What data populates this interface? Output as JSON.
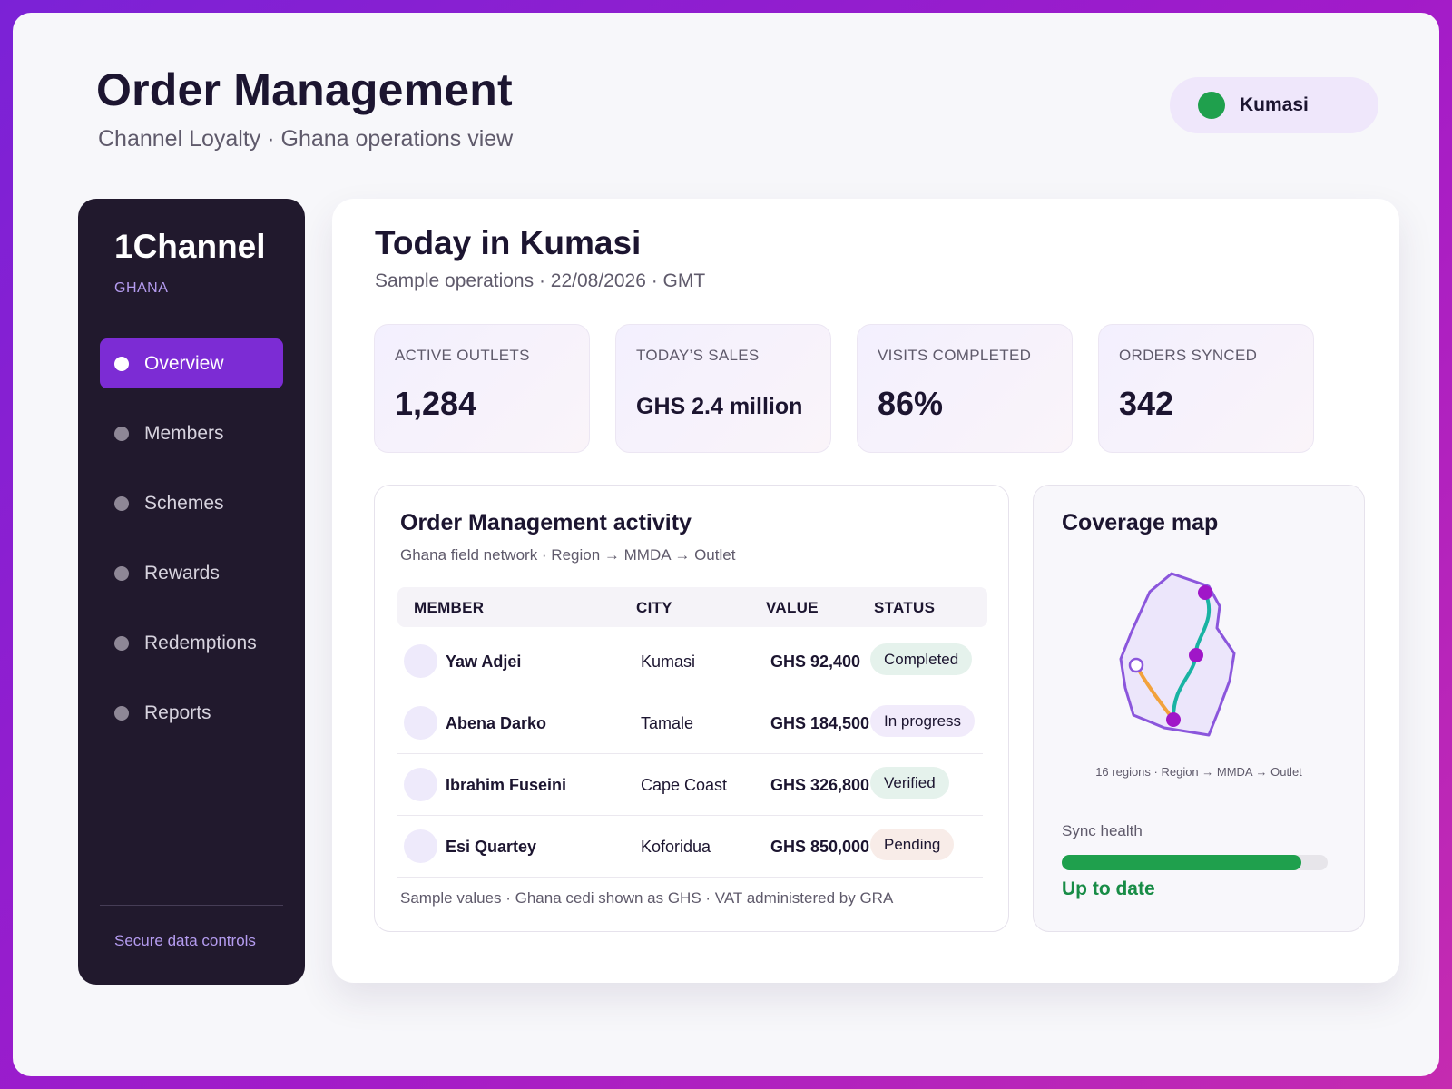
{
  "header": {
    "title": "Order Management",
    "subtitle": "Channel Loyalty · Ghana operations view",
    "location": "Kumasi",
    "location_color": "#1fa04d"
  },
  "sidebar": {
    "brand": "1Channel",
    "country": "GHANA",
    "items": [
      {
        "label": "Overview",
        "active": true
      },
      {
        "label": "Members",
        "active": false
      },
      {
        "label": "Schemes",
        "active": false
      },
      {
        "label": "Rewards",
        "active": false
      },
      {
        "label": "Redemptions",
        "active": false
      },
      {
        "label": "Reports",
        "active": false
      }
    ],
    "footer": "Secure data controls"
  },
  "main": {
    "title": "Today in Kumasi",
    "subtitle": "Sample operations · 22/08/2026 · GMT",
    "kpis": [
      {
        "label": "ACTIVE OUTLETS",
        "value": "1,284"
      },
      {
        "label": "TODAY’S SALES",
        "value": "GHS 2.4 million"
      },
      {
        "label": "VISITS COMPLETED",
        "value": "86%"
      },
      {
        "label": "ORDERS SYNCED",
        "value": "342"
      }
    ]
  },
  "activity": {
    "title": "Order Management activity",
    "subtitle": "Ghana field network · Region → MMDA → Outlet",
    "columns": [
      "MEMBER",
      "CITY",
      "VALUE",
      "STATUS"
    ],
    "rows": [
      {
        "member": "Yaw Adjei",
        "city": "Kumasi",
        "value": "GHS 92,400",
        "status": "Completed"
      },
      {
        "member": "Abena Darko",
        "city": "Tamale",
        "value": "GHS 184,500",
        "status": "In progress"
      },
      {
        "member": "Ibrahim Fuseini",
        "city": "Cape Coast",
        "value": "GHS 326,800",
        "status": "Verified"
      },
      {
        "member": "Esi Quartey",
        "city": "Koforidua",
        "value": "GHS 850,000",
        "status": "Pending"
      }
    ],
    "footer": "Sample values · Ghana cedi shown as GHS · VAT administered by GRA"
  },
  "coverage": {
    "title": "Coverage map",
    "caption": "16 regions · Region → MMDA → Outlet",
    "sync_label": "Sync health",
    "sync_level_percent": 90,
    "sync_status": "Up to date",
    "accent_color": "#7c2cd4",
    "route_colors": [
      "#19b3a3",
      "#f2a23c"
    ]
  }
}
